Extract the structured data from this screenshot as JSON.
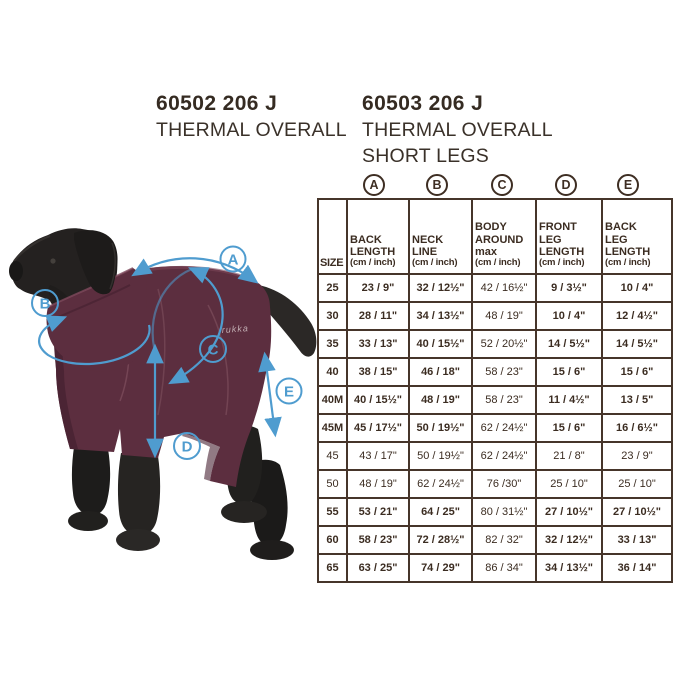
{
  "products": [
    {
      "code": "60502 206 J",
      "lines": [
        "THERMAL OVERALL"
      ]
    },
    {
      "code": "60503 206 J",
      "lines": [
        "THERMAL OVERALL",
        "SHORT LEGS"
      ]
    }
  ],
  "annotations": [
    "A",
    "B",
    "C",
    "D",
    "E"
  ],
  "dog": {
    "brand": "rukka"
  },
  "table": {
    "size_header": "SIZE",
    "columns": [
      {
        "letter": "A",
        "lines": [
          "BACK",
          "LENGTH"
        ],
        "unit": "(cm / inch)"
      },
      {
        "letter": "B",
        "lines": [
          "NECK",
          "LINE"
        ],
        "unit": "(cm / inch)"
      },
      {
        "letter": "C",
        "lines": [
          "BODY",
          "AROUND",
          "max"
        ],
        "unit": "(cm / inch)"
      },
      {
        "letter": "D",
        "lines": [
          "FRONT",
          "LEG",
          "LENGTH"
        ],
        "unit": "(cm / inch)"
      },
      {
        "letter": "E",
        "lines": [
          "BACK",
          "LEG",
          "LENGTH"
        ],
        "unit": "(cm / inch)"
      }
    ],
    "rows": [
      {
        "size": "25",
        "bold": false,
        "light": false,
        "values": [
          "23 / 9\"",
          "32 / 12½\"",
          "42 / 16½\"",
          "9 / 3½\"",
          "10 / 4\""
        ]
      },
      {
        "size": "30",
        "bold": false,
        "light": false,
        "values": [
          "28 / 11\"",
          "34 / 13½\"",
          "48 / 19\"",
          "10 / 4\"",
          "12 / 4½\""
        ]
      },
      {
        "size": "35",
        "bold": false,
        "light": false,
        "values": [
          "33 / 13\"",
          "40 / 15½\"",
          "52 / 20½\"",
          "14 / 5½\"",
          "14 / 5½\""
        ]
      },
      {
        "size": "40",
        "bold": false,
        "light": false,
        "values": [
          "38 / 15\"",
          "46 / 18\"",
          "58 / 23\"",
          "15 / 6\"",
          "15 / 6\""
        ]
      },
      {
        "size": "40M",
        "bold": true,
        "light": false,
        "values": [
          "40 / 15½\"",
          "48 / 19\"",
          "58 / 23\"",
          "11 / 4½\"",
          "13 / 5\""
        ]
      },
      {
        "size": "45M",
        "bold": true,
        "light": false,
        "values": [
          "45 / 17½\"",
          "50 / 19½\"",
          "62 / 24½\"",
          "15 / 6\"",
          "16 / 6½\""
        ]
      },
      {
        "size": "45",
        "bold": false,
        "light": true,
        "values": [
          "43 / 17\"",
          "50 / 19½\"",
          "62 / 24½\"",
          "21 / 8\"",
          "23 / 9\""
        ]
      },
      {
        "size": "50",
        "bold": false,
        "light": true,
        "values": [
          "48 / 19\"",
          "62 / 24½\"",
          "76 /30\"",
          "25 / 10\"",
          "25 / 10\""
        ]
      },
      {
        "size": "55",
        "bold": false,
        "light": false,
        "values": [
          "53 / 21\"",
          "64 / 25\"",
          "80 / 31½\"",
          "27 / 10½\"",
          "27 / 10½\""
        ]
      },
      {
        "size": "60",
        "bold": false,
        "light": false,
        "values": [
          "58 / 23\"",
          "72 / 28½\"",
          "82 / 32\"",
          "32 / 12½\"",
          "33 / 13\""
        ]
      },
      {
        "size": "65",
        "bold": false,
        "light": false,
        "values": [
          "63 / 25\"",
          "74 / 29\"",
          "86 / 34\"",
          "34 / 13½\"",
          "36 / 14\""
        ]
      }
    ]
  },
  "colors": {
    "coat": "#5c2e3f",
    "coat_shadow": "#472232",
    "dog_black": "#242120",
    "annotation_blue": "#4f9ccf",
    "table_ink": "#3b2c21"
  }
}
